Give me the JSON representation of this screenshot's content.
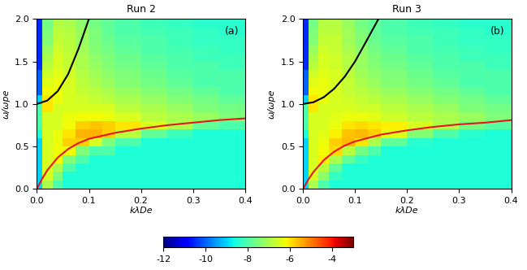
{
  "chart_data": [
    {
      "type": "heatmap",
      "title": "Run 2",
      "annotation": "(a)",
      "x_label": "kλDe",
      "y_label": "ω/ωpe",
      "xlim": [
        0.0,
        0.4
      ],
      "ylim": [
        0.0,
        2.0
      ],
      "xticks": [
        0.0,
        0.1,
        0.2,
        0.3,
        0.4
      ],
      "yticks": [
        0.0,
        0.5,
        1.0,
        1.5,
        2.0
      ],
      "x_edges": [
        0.0,
        0.01,
        0.03,
        0.05,
        0.075,
        0.1,
        0.125,
        0.15,
        0.2,
        0.25,
        0.3,
        0.35,
        0.4
      ],
      "y_edges": [
        0.0,
        0.1,
        0.2,
        0.3,
        0.4,
        0.5,
        0.6,
        0.7,
        0.8,
        0.9,
        1.0,
        1.1,
        1.2,
        1.3,
        1.4,
        1.5,
        1.6,
        1.7,
        1.8,
        1.9,
        2.0
      ],
      "cells": [
        [
          -9,
          -7,
          -8,
          -8.5,
          -8.5,
          -8.5,
          -8.5,
          -8.5,
          -8.5,
          -8.5,
          -8.5,
          -8.5
        ],
        [
          -9,
          -6.5,
          -7.5,
          -8.5,
          -8.5,
          -8.5,
          -8.5,
          -8.5,
          -8.5,
          -8.5,
          -8.5,
          -8.5
        ],
        [
          -9,
          -6.5,
          -7,
          -8,
          -8.5,
          -8.5,
          -8.5,
          -8.5,
          -8.5,
          -8.5,
          -8.5,
          -8.5
        ],
        [
          -9,
          -6.5,
          -6.2,
          -7.5,
          -8,
          -8.5,
          -8.5,
          -8.5,
          -8.5,
          -8.5,
          -8.5,
          -8.5
        ],
        [
          -9,
          -6.5,
          -6.2,
          -6.2,
          -7.5,
          -8,
          -8,
          -8.5,
          -8.5,
          -8.5,
          -8.5,
          -8.5
        ],
        [
          -9,
          -6.5,
          -6.3,
          -5.8,
          -5.8,
          -6.5,
          -7.5,
          -8,
          -8.5,
          -8.5,
          -8.5,
          -8.5
        ],
        [
          -8.5,
          -6.5,
          -6.3,
          -6,
          -5.5,
          -5.5,
          -5.8,
          -6.8,
          -7.8,
          -8.2,
          -8.5,
          -8.5
        ],
        [
          -8,
          -6.5,
          -6.5,
          -6.2,
          -5.8,
          -5.7,
          -5.8,
          -6,
          -6.5,
          -7,
          -7.8,
          -8
        ],
        [
          -8,
          -6.5,
          -6.5,
          -6.3,
          -6.2,
          -6.2,
          -6.3,
          -6.5,
          -6.8,
          -7,
          -7.2,
          -7.5
        ],
        [
          -8,
          -6,
          -6.5,
          -6.5,
          -6.5,
          -6.5,
          -6.5,
          -6.8,
          -7,
          -7.2,
          -7.5,
          -7.6
        ],
        [
          -9,
          -6,
          -6.3,
          -6.5,
          -6.6,
          -6.7,
          -6.8,
          -7,
          -7.2,
          -7.4,
          -7.6,
          -7.8
        ],
        [
          -10,
          -6.2,
          -6.3,
          -6.5,
          -6.7,
          -6.8,
          -7,
          -7.2,
          -7.4,
          -7.6,
          -7.8,
          -8
        ],
        [
          -10,
          -6.4,
          -6.3,
          -6.5,
          -6.8,
          -7,
          -7.2,
          -7.4,
          -7.6,
          -7.8,
          -8,
          -8
        ],
        [
          -10,
          -6.6,
          -6.4,
          -6.6,
          -6.9,
          -7.1,
          -7.3,
          -7.5,
          -7.7,
          -7.9,
          -8,
          -8
        ],
        [
          -10.5,
          -6.8,
          -6.5,
          -6.7,
          -7,
          -7.2,
          -7.4,
          -7.6,
          -7.8,
          -8,
          -8,
          -8.2
        ],
        [
          -10.5,
          -7,
          -6.5,
          -6.7,
          -7,
          -7.3,
          -7.5,
          -7.7,
          -7.9,
          -8,
          -8.2,
          -8.2
        ],
        [
          -10.5,
          -7.2,
          -6.6,
          -6.8,
          -7.1,
          -7.4,
          -7.6,
          -7.8,
          -8,
          -8.1,
          -8.2,
          -8.3
        ],
        [
          -10.5,
          -7.4,
          -6.7,
          -6.8,
          -7.2,
          -7.5,
          -7.7,
          -7.9,
          -8,
          -8.2,
          -8.3,
          -8.3
        ],
        [
          -10.5,
          -7.5,
          -6.8,
          -6.9,
          -7.2,
          -7.5,
          -7.8,
          -8,
          -8.1,
          -8.2,
          -8.3,
          -8.4
        ],
        [
          -10.5,
          -7.6,
          -6.9,
          -7,
          -7.3,
          -7.6,
          -7.8,
          -8,
          -8.2,
          -8.3,
          -8.4,
          -8.4
        ]
      ],
      "lines": [
        {
          "color": "#000000",
          "x": [
            0.0,
            0.02,
            0.04,
            0.06,
            0.08,
            0.1
          ],
          "values": [
            1.0,
            1.04,
            1.15,
            1.35,
            1.65,
            2.0
          ]
        },
        {
          "color": "#e8141e",
          "x": [
            0.0,
            0.01,
            0.02,
            0.04,
            0.06,
            0.08,
            0.1,
            0.15,
            0.2,
            0.25,
            0.3,
            0.35,
            0.4
          ],
          "values": [
            0.0,
            0.12,
            0.22,
            0.37,
            0.47,
            0.54,
            0.59,
            0.66,
            0.71,
            0.75,
            0.78,
            0.81,
            0.83
          ]
        }
      ]
    },
    {
      "type": "heatmap",
      "title": "Run 3",
      "annotation": "(b)",
      "x_label": "kλDe",
      "y_label": "ω/ωpe",
      "xlim": [
        0.0,
        0.4
      ],
      "ylim": [
        0.0,
        2.0
      ],
      "xticks": [
        0.0,
        0.1,
        0.2,
        0.3,
        0.4
      ],
      "yticks": [
        0.0,
        0.5,
        1.0,
        1.5,
        2.0
      ],
      "x_edges": [
        0.0,
        0.01,
        0.03,
        0.05,
        0.075,
        0.1,
        0.125,
        0.15,
        0.2,
        0.25,
        0.3,
        0.35,
        0.4
      ],
      "y_edges": [
        0.0,
        0.1,
        0.2,
        0.3,
        0.4,
        0.5,
        0.6,
        0.7,
        0.8,
        0.9,
        1.0,
        1.1,
        1.2,
        1.3,
        1.4,
        1.5,
        1.6,
        1.7,
        1.8,
        1.9,
        2.0
      ],
      "cells": [
        [
          -9,
          -7,
          -8,
          -8.5,
          -8.5,
          -8.5,
          -8.5,
          -8.5,
          -8.5,
          -8.5,
          -8.5,
          -8.5
        ],
        [
          -9,
          -6.5,
          -7.3,
          -8.3,
          -8.5,
          -8.5,
          -8.5,
          -8.5,
          -8.5,
          -8.5,
          -8.5,
          -8.5
        ],
        [
          -9,
          -6.5,
          -6.8,
          -7.8,
          -8.5,
          -8.5,
          -8.5,
          -8.5,
          -8.5,
          -8.5,
          -8.5,
          -8.5
        ],
        [
          -9,
          -6.5,
          -6.1,
          -7,
          -7.8,
          -8.3,
          -8.5,
          -8.5,
          -8.5,
          -8.5,
          -8.5,
          -8.5
        ],
        [
          -9,
          -6.5,
          -6.2,
          -5.9,
          -6.8,
          -7.6,
          -8,
          -8.5,
          -8.5,
          -8.5,
          -8.5,
          -8.5
        ],
        [
          -9,
          -6.5,
          -6.3,
          -5.8,
          -5.6,
          -6,
          -7,
          -7.8,
          -8.4,
          -8.5,
          -8.5,
          -8.5
        ],
        [
          -8.5,
          -6.5,
          -6.4,
          -6.1,
          -5.7,
          -5.6,
          -5.8,
          -6.4,
          -7.4,
          -8,
          -8.4,
          -8.5
        ],
        [
          -8,
          -6.5,
          -6.5,
          -6.3,
          -6,
          -5.9,
          -6,
          -6.1,
          -6.5,
          -7,
          -7.6,
          -7.9
        ],
        [
          -8,
          -6.5,
          -6.5,
          -6.4,
          -6.3,
          -6.3,
          -6.4,
          -6.6,
          -6.8,
          -7,
          -7.2,
          -7.5
        ],
        [
          -8,
          -6,
          -6.5,
          -6.5,
          -6.5,
          -6.6,
          -6.6,
          -6.8,
          -7,
          -7.2,
          -7.5,
          -7.6
        ],
        [
          -9,
          -6,
          -6.3,
          -6.5,
          -6.6,
          -6.7,
          -6.8,
          -7,
          -7.2,
          -7.4,
          -7.6,
          -7.8
        ],
        [
          -10,
          -6.2,
          -6.3,
          -6.5,
          -6.7,
          -6.8,
          -7,
          -7.2,
          -7.4,
          -7.6,
          -7.8,
          -8
        ],
        [
          -10,
          -6.4,
          -6.3,
          -6.5,
          -6.7,
          -7,
          -7.2,
          -7.4,
          -7.6,
          -7.8,
          -8,
          -8
        ],
        [
          -10,
          -6.6,
          -6.4,
          -6.5,
          -6.8,
          -7.1,
          -7.3,
          -7.5,
          -7.7,
          -7.9,
          -8,
          -8
        ],
        [
          -10.5,
          -6.8,
          -6.5,
          -6.6,
          -6.9,
          -7.2,
          -7.4,
          -7.6,
          -7.8,
          -8,
          -8,
          -8.2
        ],
        [
          -10.5,
          -7,
          -6.5,
          -6.6,
          -6.9,
          -7.2,
          -7.5,
          -7.7,
          -7.9,
          -8,
          -8.2,
          -8.2
        ],
        [
          -10.5,
          -7.2,
          -6.6,
          -6.7,
          -7,
          -7.3,
          -7.6,
          -7.8,
          -8,
          -8.1,
          -8.2,
          -8.3
        ],
        [
          -10.5,
          -7.4,
          -6.7,
          -6.7,
          -7.1,
          -7.4,
          -7.7,
          -7.9,
          -8,
          -8.2,
          -8.3,
          -8.3
        ],
        [
          -10.5,
          -7.5,
          -6.8,
          -6.8,
          -7.1,
          -7.5,
          -7.8,
          -8,
          -8.1,
          -8.2,
          -8.3,
          -8.4
        ],
        [
          -10.5,
          -7.6,
          -6.9,
          -6.9,
          -7.2,
          -7.6,
          -7.8,
          -8,
          -8.2,
          -8.3,
          -8.4,
          -8.4
        ]
      ],
      "lines": [
        {
          "color": "#000000",
          "x": [
            0.0,
            0.02,
            0.04,
            0.06,
            0.08,
            0.1,
            0.12,
            0.145
          ],
          "values": [
            1.0,
            1.02,
            1.08,
            1.18,
            1.32,
            1.5,
            1.72,
            2.0
          ]
        },
        {
          "color": "#e8141e",
          "x": [
            0.0,
            0.01,
            0.02,
            0.04,
            0.06,
            0.08,
            0.1,
            0.15,
            0.2,
            0.25,
            0.3,
            0.35,
            0.4
          ],
          "values": [
            0.0,
            0.11,
            0.2,
            0.34,
            0.44,
            0.51,
            0.56,
            0.64,
            0.69,
            0.73,
            0.76,
            0.78,
            0.81
          ]
        }
      ]
    }
  ],
  "colorbar": {
    "range": [
      -12,
      -3
    ],
    "ticks": [
      -12,
      -10,
      -8,
      -6,
      -4
    ]
  }
}
